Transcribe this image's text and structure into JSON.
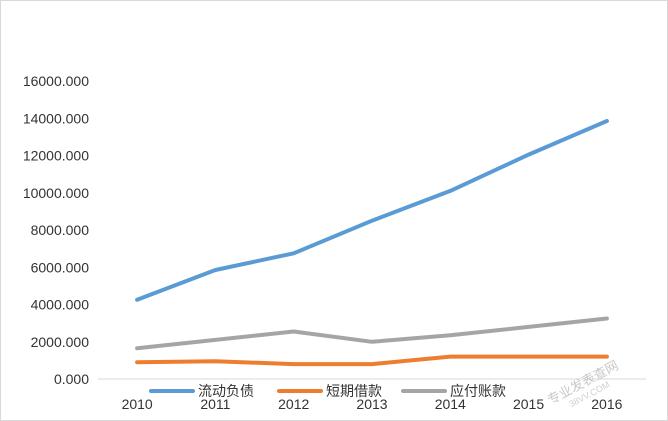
{
  "chart_data": {
    "type": "line",
    "title": "",
    "xlabel": "",
    "ylabel": "",
    "x": [
      "2010",
      "2011",
      "2012",
      "2013",
      "2014",
      "2015",
      "2016"
    ],
    "ylim": [
      0,
      16000
    ],
    "yticks": [
      "0.000",
      "2000.000",
      "4000.000",
      "6000.000",
      "8000.000",
      "10000.000",
      "12000.000",
      "14000.000",
      "16000.000"
    ],
    "grid": false,
    "legend_position": "bottom",
    "series": [
      {
        "name": "流动负债",
        "color": "#5b9bd5",
        "values": [
          4250,
          5850,
          6750,
          8500,
          10100,
          12050,
          13850
        ]
      },
      {
        "name": "短期借款",
        "color": "#ed7d31",
        "values": [
          900,
          950,
          800,
          800,
          1200,
          1200,
          1200
        ]
      },
      {
        "name": "应付账款",
        "color": "#a5a5a5",
        "values": [
          1650,
          2100,
          2550,
          2000,
          2350,
          2800,
          3250
        ]
      }
    ]
  },
  "watermark": {
    "text": "专业发表查网",
    "url": "38VV.COM"
  }
}
